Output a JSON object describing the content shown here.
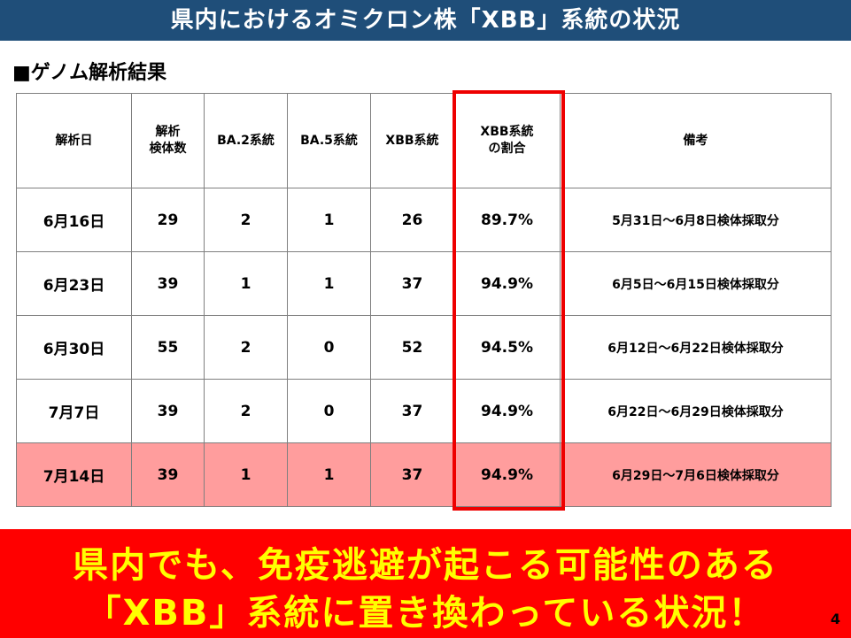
{
  "title": "県内におけるオミクロン株「XBB」系統の状況",
  "section_label": "■ゲノム解析結果",
  "table": {
    "headers": [
      [
        "解析日"
      ],
      [
        "解析",
        "検体数"
      ],
      [
        "BA.2系統"
      ],
      [
        "BA.5系統"
      ],
      [
        "XBB系統"
      ],
      [
        "XBB系統",
        "の割合"
      ],
      [
        "備考"
      ]
    ],
    "rows": [
      {
        "date": "6月16日",
        "samples": "29",
        "ba2": "2",
        "ba5": "1",
        "xbb": "26",
        "ratio": "89.7%",
        "note": "5月31日～6月8日検体採取分",
        "highlight": false
      },
      {
        "date": "6月23日",
        "samples": "39",
        "ba2": "1",
        "ba5": "1",
        "xbb": "37",
        "ratio": "94.9%",
        "note": "6月5日～6月15日検体採取分",
        "highlight": false
      },
      {
        "date": "6月30日",
        "samples": "55",
        "ba2": "2",
        "ba5": "0",
        "xbb": "52",
        "ratio": "94.5%",
        "note": "6月12日～6月22日検体採取分",
        "highlight": false
      },
      {
        "date": "7月7日",
        "samples": "39",
        "ba2": "2",
        "ba5": "0",
        "xbb": "37",
        "ratio": "94.9%",
        "note": "6月22日～6月29日検体採取分",
        "highlight": false
      },
      {
        "date": "7月14日",
        "samples": "39",
        "ba2": "1",
        "ba5": "1",
        "xbb": "37",
        "ratio": "94.9%",
        "note": "6月29日～7月6日検体採取分",
        "highlight": true
      }
    ]
  },
  "banner": {
    "line1": "県内でも、免疫逃避が起こる可能性のある",
    "line2": "「XBB」系統に置き換わっている状況！"
  },
  "page_number": "4",
  "colors": {
    "title_bar": "#1f4e79",
    "highlight_row": "#ff9d9d",
    "frame": "#ee0000",
    "banner_bg": "#ff0000",
    "banner_text": "#ffff00"
  }
}
